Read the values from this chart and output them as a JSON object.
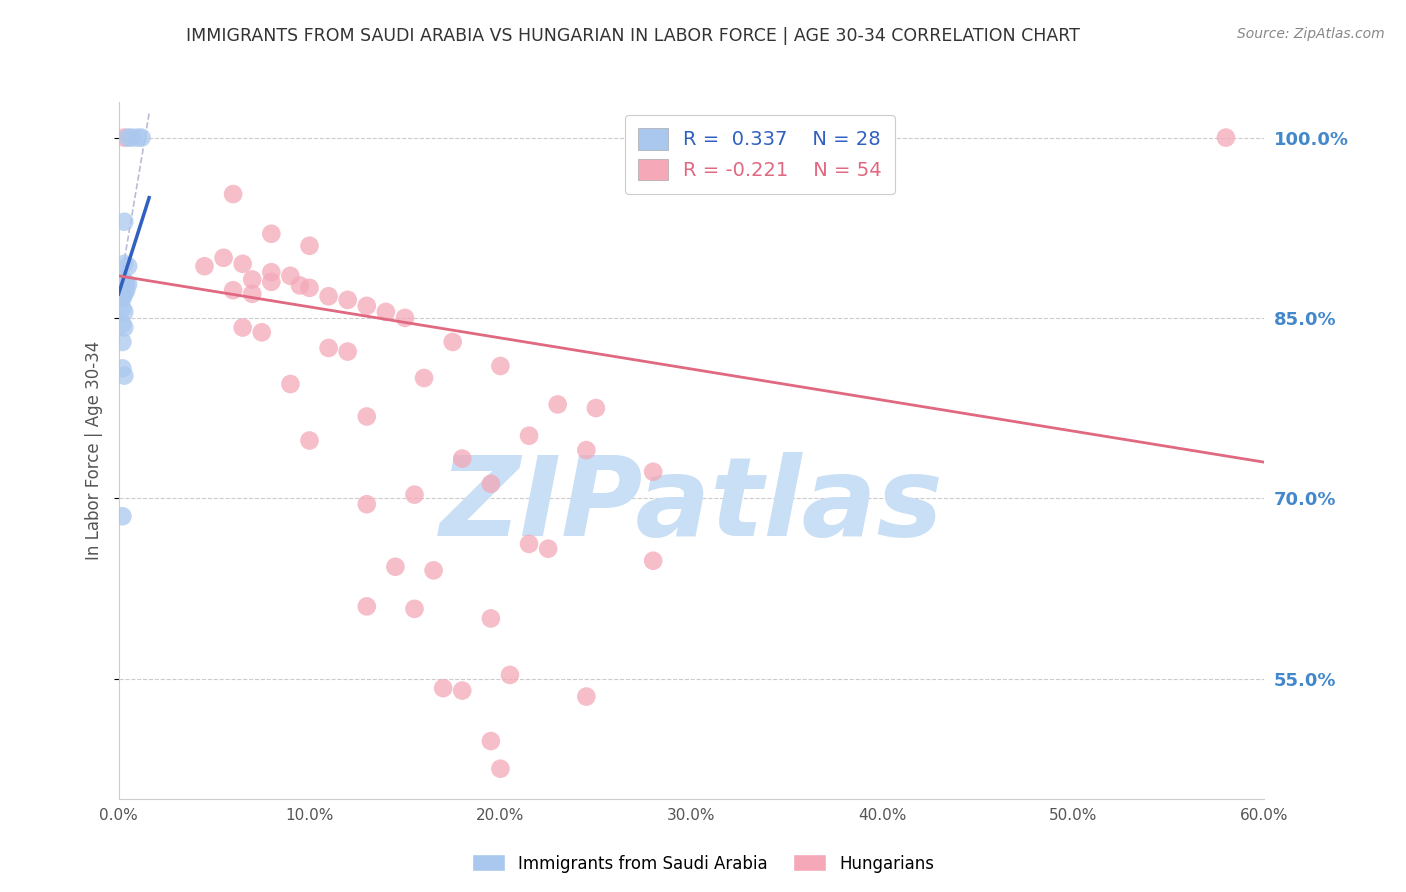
{
  "title": "IMMIGRANTS FROM SAUDI ARABIA VS HUNGARIAN IN LABOR FORCE | AGE 30-34 CORRELATION CHART",
  "source": "Source: ZipAtlas.com",
  "ylabel": "In Labor Force | Age 30-34",
  "xlim": [
    0.0,
    0.6
  ],
  "ylim": [
    0.45,
    1.03
  ],
  "right_ytick_labels": [
    "55.0%",
    "70.0%",
    "85.0%",
    "100.0%"
  ],
  "right_ytick_values": [
    0.55,
    0.7,
    0.85,
    1.0
  ],
  "xtick_labels": [
    "0.0%",
    "10.0%",
    "20.0%",
    "30.0%",
    "40.0%",
    "50.0%",
    "60.0%"
  ],
  "xtick_values": [
    0.0,
    0.1,
    0.2,
    0.3,
    0.4,
    0.5,
    0.6
  ],
  "blue_R": 0.337,
  "blue_N": 28,
  "pink_R": -0.221,
  "pink_N": 54,
  "legend_label_blue": "Immigrants from Saudi Arabia",
  "legend_label_pink": "Hungarians",
  "blue_color": "#aac8ee",
  "pink_color": "#f4a8b8",
  "blue_line_color": "#3060c0",
  "pink_line_color": "#e06880",
  "blue_scatter": [
    [
      0.005,
      1.0
    ],
    [
      0.01,
      1.0
    ],
    [
      0.012,
      1.0
    ],
    [
      0.007,
      1.0
    ],
    [
      0.003,
      0.93
    ],
    [
      0.003,
      0.895
    ],
    [
      0.005,
      0.893
    ],
    [
      0.002,
      0.882
    ],
    [
      0.003,
      0.88
    ],
    [
      0.004,
      0.879
    ],
    [
      0.005,
      0.878
    ],
    [
      0.002,
      0.876
    ],
    [
      0.003,
      0.875
    ],
    [
      0.003,
      0.874
    ],
    [
      0.004,
      0.873
    ],
    [
      0.002,
      0.872
    ],
    [
      0.003,
      0.871
    ],
    [
      0.003,
      0.87
    ],
    [
      0.002,
      0.868
    ],
    [
      0.002,
      0.866
    ],
    [
      0.002,
      0.858
    ],
    [
      0.003,
      0.855
    ],
    [
      0.002,
      0.845
    ],
    [
      0.003,
      0.842
    ],
    [
      0.002,
      0.83
    ],
    [
      0.002,
      0.808
    ],
    [
      0.003,
      0.802
    ],
    [
      0.002,
      0.685
    ]
  ],
  "pink_scatter": [
    [
      0.003,
      1.0
    ],
    [
      0.58,
      1.0
    ],
    [
      0.06,
      0.953
    ],
    [
      0.08,
      0.92
    ],
    [
      0.1,
      0.91
    ],
    [
      0.055,
      0.9
    ],
    [
      0.065,
      0.895
    ],
    [
      0.045,
      0.893
    ],
    [
      0.08,
      0.888
    ],
    [
      0.09,
      0.885
    ],
    [
      0.07,
      0.882
    ],
    [
      0.08,
      0.88
    ],
    [
      0.095,
      0.877
    ],
    [
      0.1,
      0.875
    ],
    [
      0.06,
      0.873
    ],
    [
      0.07,
      0.87
    ],
    [
      0.11,
      0.868
    ],
    [
      0.12,
      0.865
    ],
    [
      0.13,
      0.86
    ],
    [
      0.14,
      0.855
    ],
    [
      0.15,
      0.85
    ],
    [
      0.065,
      0.842
    ],
    [
      0.075,
      0.838
    ],
    [
      0.175,
      0.83
    ],
    [
      0.11,
      0.825
    ],
    [
      0.12,
      0.822
    ],
    [
      0.2,
      0.81
    ],
    [
      0.16,
      0.8
    ],
    [
      0.09,
      0.795
    ],
    [
      0.23,
      0.778
    ],
    [
      0.25,
      0.775
    ],
    [
      0.13,
      0.768
    ],
    [
      0.215,
      0.752
    ],
    [
      0.1,
      0.748
    ],
    [
      0.245,
      0.74
    ],
    [
      0.18,
      0.733
    ],
    [
      0.28,
      0.722
    ],
    [
      0.195,
      0.712
    ],
    [
      0.155,
      0.703
    ],
    [
      0.13,
      0.695
    ],
    [
      0.215,
      0.662
    ],
    [
      0.225,
      0.658
    ],
    [
      0.28,
      0.648
    ],
    [
      0.145,
      0.643
    ],
    [
      0.165,
      0.64
    ],
    [
      0.13,
      0.61
    ],
    [
      0.155,
      0.608
    ],
    [
      0.195,
      0.6
    ],
    [
      0.205,
      0.553
    ],
    [
      0.17,
      0.542
    ],
    [
      0.18,
      0.54
    ],
    [
      0.195,
      0.498
    ],
    [
      0.2,
      0.475
    ],
    [
      0.245,
      0.535
    ]
  ],
  "watermark_text": "ZIPatlas",
  "watermark_color": "#c8dff5",
  "background_color": "#ffffff",
  "title_color": "#333333",
  "right_axis_color": "#4488cc",
  "grid_color": "#cccccc"
}
